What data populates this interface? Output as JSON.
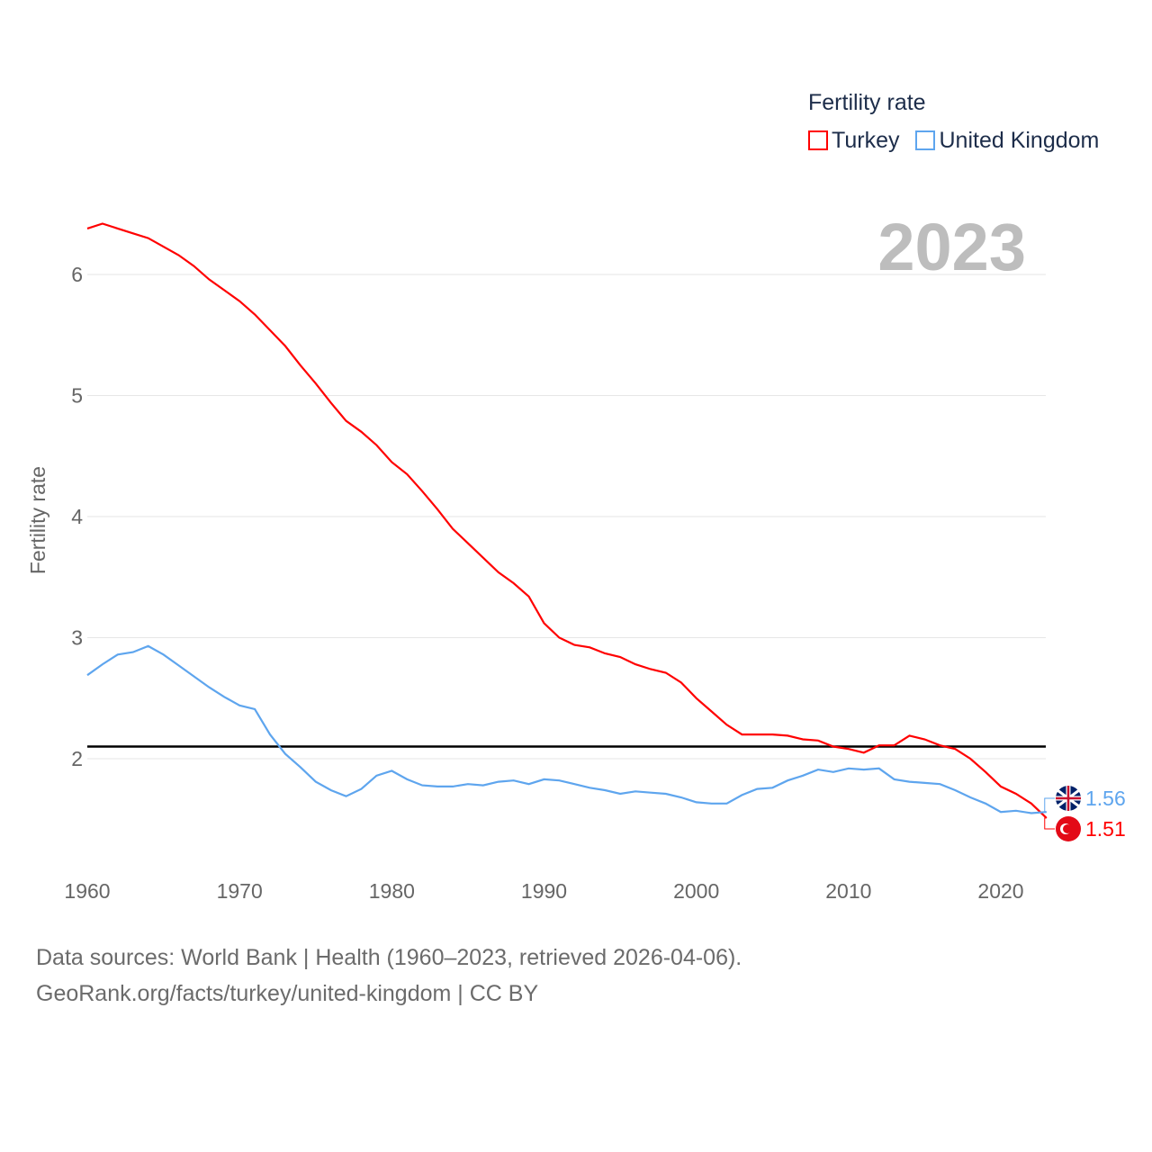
{
  "chart_data": {
    "type": "line",
    "title": "Fertility rate",
    "ylabel": "Fertility rate",
    "xlabel": "",
    "xlim": [
      1960,
      2023
    ],
    "ylim": [
      1.3,
      6.6
    ],
    "x_ticks": [
      "1960",
      "1970",
      "1980",
      "1990",
      "2000",
      "2010",
      "2020"
    ],
    "y_ticks": [
      "2",
      "3",
      "4",
      "5",
      "6"
    ],
    "year_label": "2023",
    "reference_line": 2.1,
    "x": [
      1960,
      1961,
      1962,
      1963,
      1964,
      1965,
      1966,
      1967,
      1968,
      1969,
      1970,
      1971,
      1972,
      1973,
      1974,
      1975,
      1976,
      1977,
      1978,
      1979,
      1980,
      1981,
      1982,
      1983,
      1984,
      1985,
      1986,
      1987,
      1988,
      1989,
      1990,
      1991,
      1992,
      1993,
      1994,
      1995,
      1996,
      1997,
      1998,
      1999,
      2000,
      2001,
      2002,
      2003,
      2004,
      2005,
      2006,
      2007,
      2008,
      2009,
      2010,
      2011,
      2012,
      2013,
      2014,
      2015,
      2016,
      2017,
      2018,
      2019,
      2020,
      2021,
      2022,
      2023
    ],
    "series": [
      {
        "name": "Turkey",
        "color": "#ff0000",
        "end_label": "1.51",
        "values": [
          6.38,
          6.42,
          6.38,
          6.34,
          6.3,
          6.23,
          6.16,
          6.07,
          5.96,
          5.87,
          5.78,
          5.67,
          5.54,
          5.41,
          5.25,
          5.1,
          4.94,
          4.79,
          4.7,
          4.59,
          4.45,
          4.35,
          4.21,
          4.06,
          3.9,
          3.78,
          3.66,
          3.54,
          3.45,
          3.34,
          3.12,
          3.0,
          2.94,
          2.92,
          2.87,
          2.84,
          2.78,
          2.74,
          2.71,
          2.63,
          2.5,
          2.39,
          2.28,
          2.2,
          2.2,
          2.2,
          2.19,
          2.16,
          2.15,
          2.1,
          2.08,
          2.05,
          2.11,
          2.11,
          2.19,
          2.16,
          2.11,
          2.08,
          2.0,
          1.89,
          1.77,
          1.71,
          1.63,
          1.51
        ]
      },
      {
        "name": "United Kingdom",
        "color": "#5ea5ee",
        "end_label": "1.56",
        "values": [
          2.69,
          2.78,
          2.86,
          2.88,
          2.93,
          2.86,
          2.77,
          2.68,
          2.59,
          2.51,
          2.44,
          2.41,
          2.2,
          2.04,
          1.93,
          1.81,
          1.74,
          1.69,
          1.75,
          1.86,
          1.9,
          1.83,
          1.78,
          1.77,
          1.77,
          1.79,
          1.78,
          1.81,
          1.82,
          1.79,
          1.83,
          1.82,
          1.79,
          1.76,
          1.74,
          1.71,
          1.73,
          1.72,
          1.71,
          1.68,
          1.64,
          1.63,
          1.63,
          1.7,
          1.75,
          1.76,
          1.82,
          1.86,
          1.91,
          1.89,
          1.92,
          1.91,
          1.92,
          1.83,
          1.81,
          1.8,
          1.79,
          1.74,
          1.68,
          1.63,
          1.56,
          1.57,
          1.55,
          1.56
        ]
      }
    ]
  },
  "footer": {
    "line1": "Data sources: World Bank | Health (1960–2023, retrieved 2026-04-06).",
    "line2": "GeoRank.org/facts/turkey/united-kingdom | CC BY"
  }
}
